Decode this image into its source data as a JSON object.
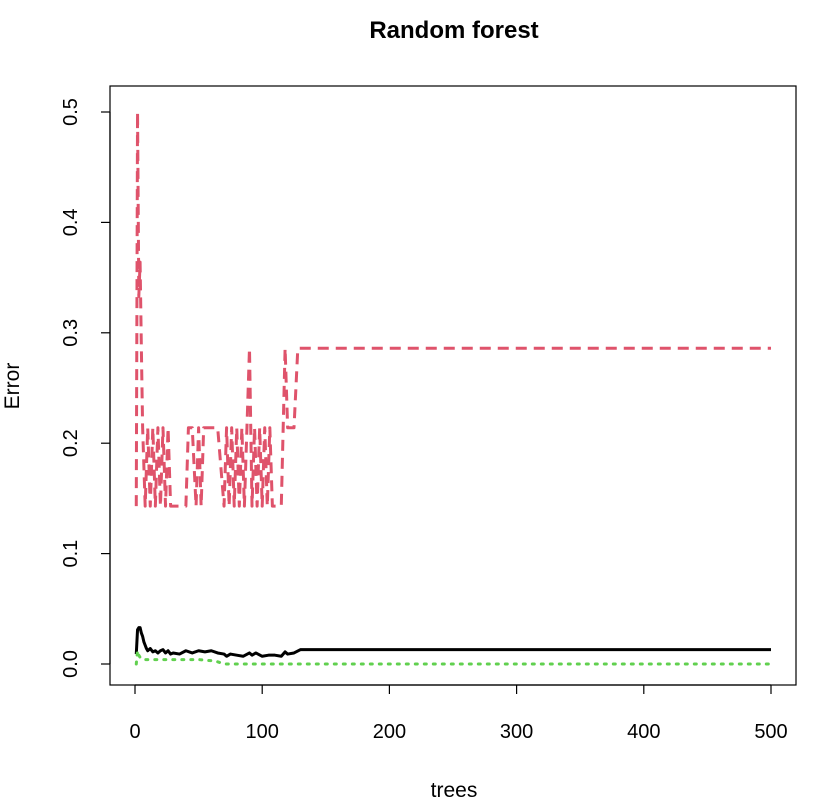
{
  "chart_data": {
    "type": "line",
    "title": "Random forest",
    "xlabel": "trees",
    "ylabel": "Error",
    "xlim": [
      0,
      500
    ],
    "ylim": [
      0,
      0.5
    ],
    "x_ticks": [
      0,
      100,
      200,
      300,
      400,
      500
    ],
    "y_ticks": [
      0.0,
      0.1,
      0.2,
      0.3,
      0.4,
      0.5
    ],
    "x_tick_labels": [
      "0",
      "100",
      "200",
      "300",
      "400",
      "500"
    ],
    "y_tick_labels": [
      "0.0",
      "0.1",
      "0.2",
      "0.3",
      "0.4",
      "0.5"
    ],
    "grid": false,
    "legend": "none",
    "series": [
      {
        "color": "#000000",
        "line_style": "solid",
        "points": [
          [
            1,
            0.009
          ],
          [
            2,
            0.031
          ],
          [
            3,
            0.033
          ],
          [
            4,
            0.033
          ],
          [
            5,
            0.028
          ],
          [
            6,
            0.025
          ],
          [
            7,
            0.02
          ],
          [
            8,
            0.017
          ],
          [
            9,
            0.014
          ],
          [
            10,
            0.012
          ],
          [
            12,
            0.014
          ],
          [
            14,
            0.011
          ],
          [
            16,
            0.012
          ],
          [
            18,
            0.01
          ],
          [
            20,
            0.012
          ],
          [
            22,
            0.013
          ],
          [
            24,
            0.01
          ],
          [
            26,
            0.012
          ],
          [
            28,
            0.009
          ],
          [
            30,
            0.01
          ],
          [
            35,
            0.009
          ],
          [
            40,
            0.012
          ],
          [
            45,
            0.01
          ],
          [
            50,
            0.012
          ],
          [
            55,
            0.011
          ],
          [
            60,
            0.012
          ],
          [
            65,
            0.01
          ],
          [
            70,
            0.009
          ],
          [
            72,
            0.007
          ],
          [
            75,
            0.009
          ],
          [
            80,
            0.008
          ],
          [
            85,
            0.007
          ],
          [
            90,
            0.01
          ],
          [
            92,
            0.008
          ],
          [
            95,
            0.01
          ],
          [
            100,
            0.007
          ],
          [
            105,
            0.008
          ],
          [
            110,
            0.008
          ],
          [
            115,
            0.007
          ],
          [
            118,
            0.011
          ],
          [
            120,
            0.009
          ],
          [
            125,
            0.01
          ],
          [
            130,
            0.013
          ],
          [
            500,
            0.013
          ]
        ]
      },
      {
        "color": "#df536b",
        "line_style": "dashed",
        "points": [
          [
            1,
            0.143
          ],
          [
            2,
            0.5
          ],
          [
            3,
            0.333
          ],
          [
            4,
            0.364
          ],
          [
            5,
            0.286
          ],
          [
            6,
            0.214
          ],
          [
            8,
            0.143
          ],
          [
            10,
            0.214
          ],
          [
            12,
            0.143
          ],
          [
            14,
            0.214
          ],
          [
            16,
            0.143
          ],
          [
            18,
            0.214
          ],
          [
            20,
            0.143
          ],
          [
            22,
            0.214
          ],
          [
            24,
            0.143
          ],
          [
            26,
            0.214
          ],
          [
            28,
            0.143
          ],
          [
            30,
            0.143
          ],
          [
            35,
            0.143
          ],
          [
            40,
            0.143
          ],
          [
            42,
            0.214
          ],
          [
            45,
            0.214
          ],
          [
            48,
            0.143
          ],
          [
            50,
            0.214
          ],
          [
            52,
            0.143
          ],
          [
            54,
            0.214
          ],
          [
            56,
            0.214
          ],
          [
            60,
            0.214
          ],
          [
            65,
            0.214
          ],
          [
            70,
            0.143
          ],
          [
            72,
            0.214
          ],
          [
            74,
            0.143
          ],
          [
            76,
            0.214
          ],
          [
            78,
            0.143
          ],
          [
            80,
            0.214
          ],
          [
            82,
            0.143
          ],
          [
            84,
            0.214
          ],
          [
            86,
            0.143
          ],
          [
            88,
            0.214
          ],
          [
            90,
            0.286
          ],
          [
            92,
            0.143
          ],
          [
            94,
            0.214
          ],
          [
            96,
            0.143
          ],
          [
            98,
            0.214
          ],
          [
            100,
            0.143
          ],
          [
            102,
            0.214
          ],
          [
            104,
            0.143
          ],
          [
            106,
            0.214
          ],
          [
            108,
            0.143
          ],
          [
            110,
            0.143
          ],
          [
            115,
            0.143
          ],
          [
            118,
            0.286
          ],
          [
            120,
            0.214
          ],
          [
            125,
            0.214
          ],
          [
            128,
            0.286
          ],
          [
            500,
            0.286
          ]
        ]
      },
      {
        "color": "#61d04f",
        "line_style": "dotted",
        "points": [
          [
            1,
            0.0
          ],
          [
            2,
            0.012
          ],
          [
            3,
            0.008
          ],
          [
            4,
            0.006
          ],
          [
            6,
            0.004
          ],
          [
            10,
            0.004
          ],
          [
            20,
            0.004
          ],
          [
            50,
            0.004
          ],
          [
            60,
            0.003
          ],
          [
            65,
            0.002
          ],
          [
            70,
            0.0
          ],
          [
            500,
            0.0
          ]
        ]
      }
    ]
  }
}
